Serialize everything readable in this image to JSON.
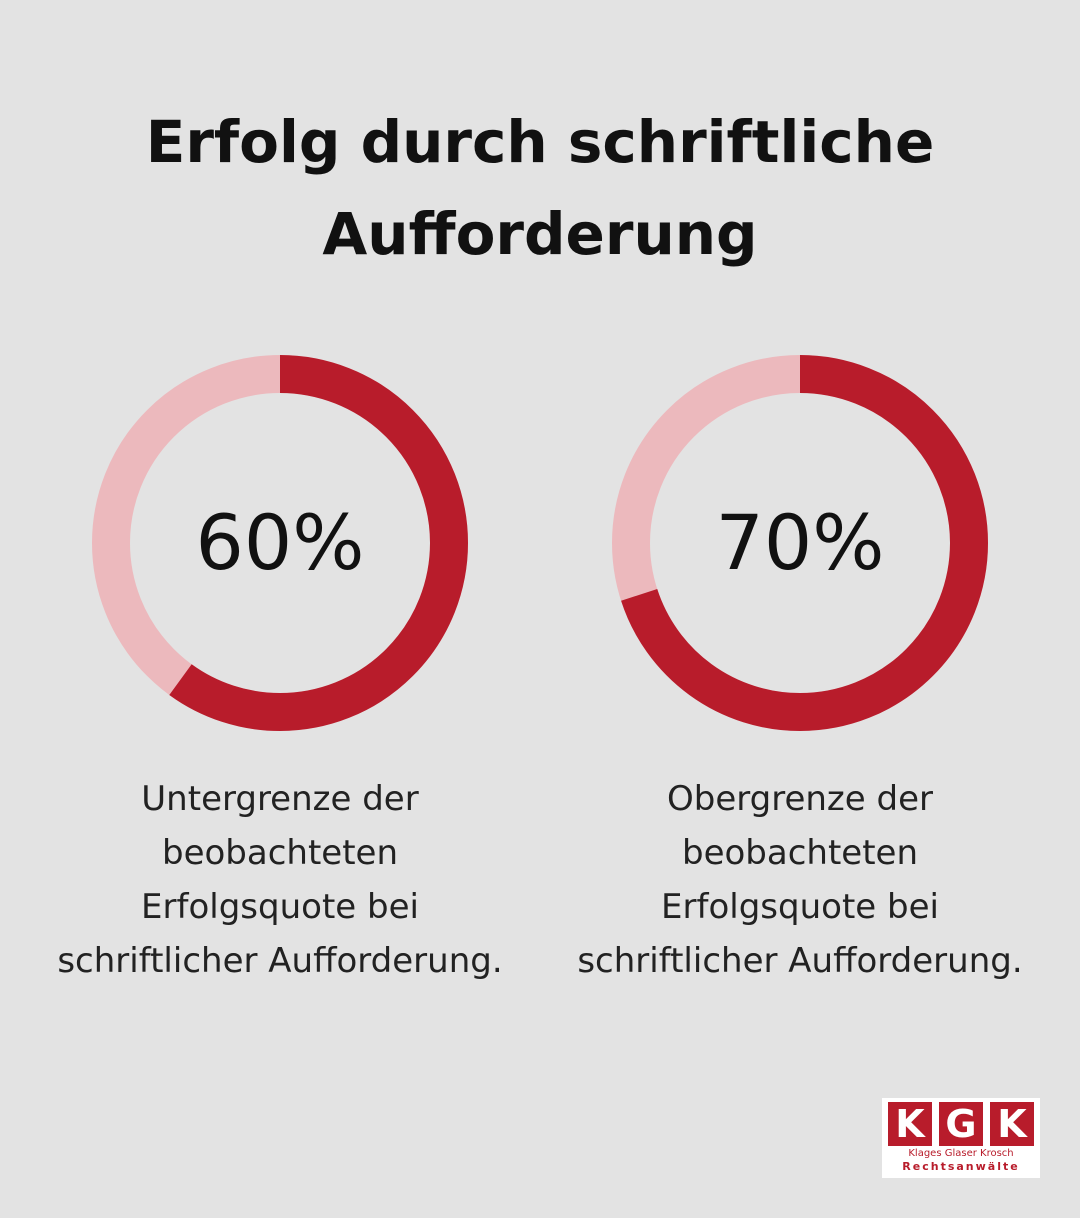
{
  "title": {
    "line1": "Erfolg durch schriftliche",
    "line2": "Aufforderung"
  },
  "colors": {
    "background": "#e3e3e3",
    "filled": "#b81c2b",
    "remainder": "#ecb9bd",
    "text": "#111111"
  },
  "chart_data": [
    {
      "type": "pie",
      "value": 60,
      "max": 100,
      "label": "60%",
      "caption": [
        "Untergrenze der",
        "beobachteten",
        "Erfolgsquote bei",
        "schriftlicher Aufforderung."
      ]
    },
    {
      "type": "pie",
      "value": 70,
      "max": 100,
      "label": "70%",
      "caption": [
        "Obergrenze der",
        "beobachteten",
        "Erfolgsquote bei",
        "schriftlicher Aufforderung."
      ]
    }
  ],
  "logo": {
    "letters": [
      "K",
      "G",
      "K"
    ],
    "names": "Klages  Glaser  Krosch",
    "subtitle": "Rechtsanwälte"
  }
}
